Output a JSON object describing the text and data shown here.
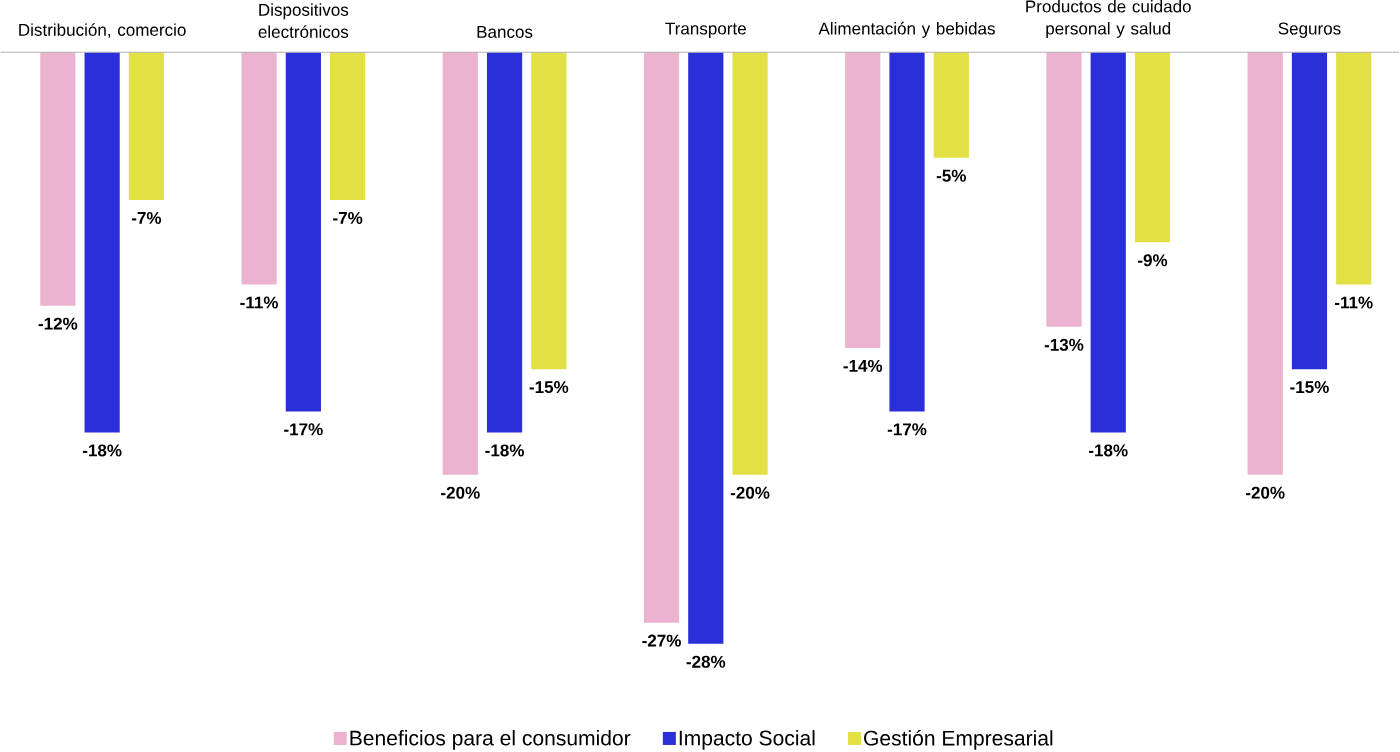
{
  "chart_data": {
    "type": "bar",
    "categories": [
      "Distribución, comercio",
      "Dispositivos electrónicos",
      "Bancos",
      "Transporte",
      "Alimentación y bebidas",
      "Productos de cuidado personal y salud",
      "Seguros"
    ],
    "series": [
      {
        "name": "Beneficios para el consumidor",
        "color": "#ebb3cf",
        "values": [
          -12,
          -11,
          -20,
          -27,
          -14,
          -13,
          -20
        ],
        "value_labels": [
          "-12%",
          "-11%",
          "-20%",
          "-27%",
          "-14%",
          "-13%",
          "-20%"
        ]
      },
      {
        "name": "Impacto Social",
        "color": "#2a2fd9",
        "values": [
          -18,
          -17,
          -18,
          -28,
          -17,
          -18,
          -15
        ],
        "value_labels": [
          "-18%",
          "-17%",
          "-18%",
          "-28%",
          "-17%",
          "-18%",
          "-15%"
        ]
      },
      {
        "name": "Gestión Empresarial",
        "color": "#e2e044",
        "values": [
          -7,
          -7,
          -15,
          -20,
          -5,
          -9,
          -11
        ],
        "value_labels": [
          "-7%",
          "-7%",
          "-15%",
          "-20%",
          "-5%",
          "-9%",
          "-11%"
        ]
      }
    ],
    "legend": "bottom"
  }
}
